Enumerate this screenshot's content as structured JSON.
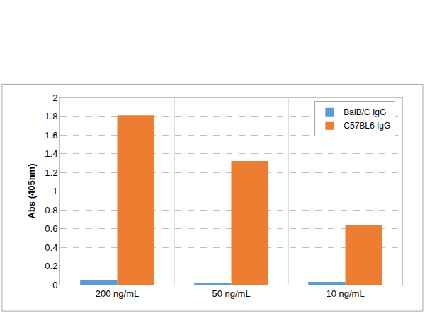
{
  "chart_data": {
    "type": "bar",
    "categories": [
      "200 ng/mL",
      "50 ng/mL",
      "10 ng/mL"
    ],
    "series": [
      {
        "name": "BalB/C IgG",
        "color": "#5b9bd5",
        "values": [
          0.05,
          0.02,
          0.03
        ]
      },
      {
        "name": "C57BL6 IgG",
        "color": "#ed7d31",
        "values": [
          1.81,
          1.32,
          0.64
        ]
      }
    ],
    "y_label": "Abs (405nm)",
    "ylim": [
      0,
      2
    ],
    "yticks": [
      0,
      0.2,
      0.4,
      0.6,
      0.8,
      1,
      1.2,
      1.4,
      1.6,
      1.8,
      2
    ],
    "grid": true,
    "legend": "top-right"
  }
}
